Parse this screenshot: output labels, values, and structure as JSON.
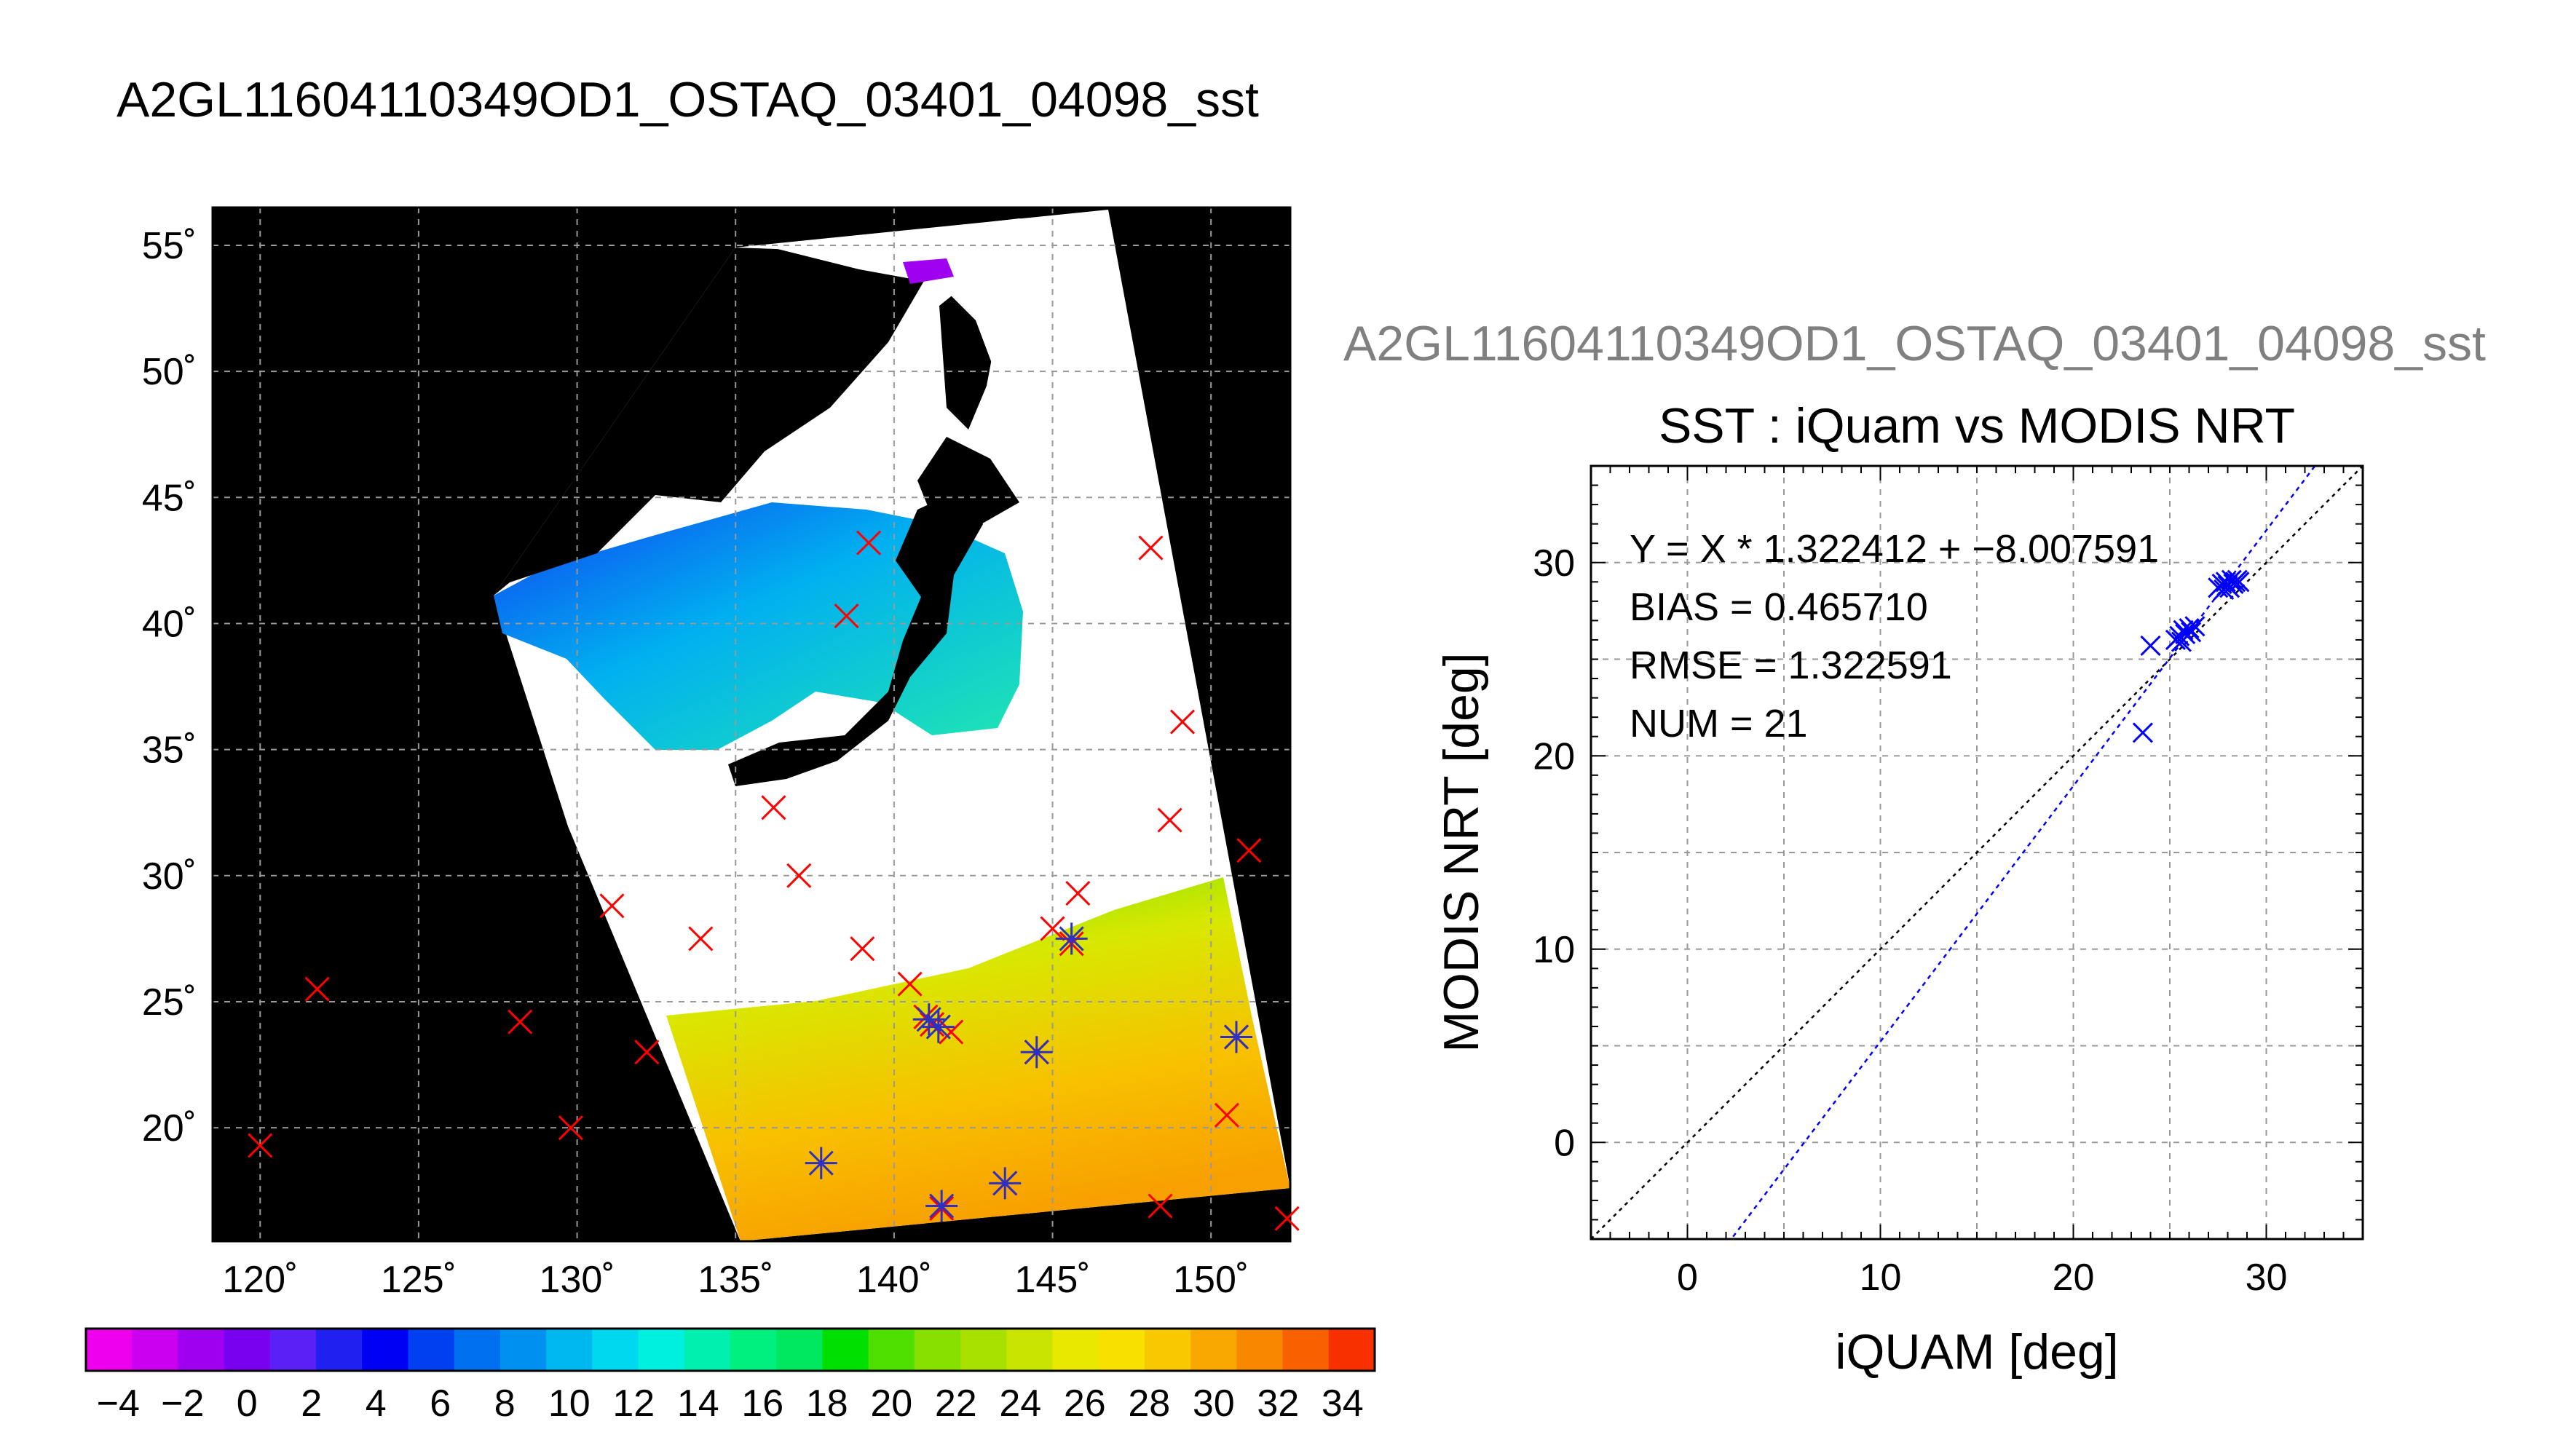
{
  "page_title": "A2GL11604110349OD1_OSTAQ_03401_04098_sst",
  "colors": {
    "land": "#000000",
    "cloud": "#ffffff",
    "match_marker": "#ff0000",
    "valid_marker": "#3030c0",
    "fit_line": "#0000ff",
    "identity_line": "#000000",
    "grid": "#999999"
  },
  "chart_data": [
    {
      "type": "heatmap",
      "name": "sst-map",
      "title": "",
      "xlabel": "",
      "ylabel": "",
      "xlim": [
        118.5,
        152.5
      ],
      "ylim": [
        15.5,
        56.5
      ],
      "grid": true,
      "x_ticks": [
        120,
        125,
        130,
        135,
        140,
        145,
        150
      ],
      "y_ticks": [
        20,
        25,
        30,
        35,
        40,
        45,
        50,
        55
      ],
      "x_tick_labels": [
        "120˚",
        "125˚",
        "130˚",
        "135˚",
        "140˚",
        "145˚",
        "150˚"
      ],
      "y_tick_labels": [
        "20˚",
        "25˚",
        "30˚",
        "35˚",
        "40˚",
        "45˚",
        "50˚",
        "55˚"
      ],
      "matchup_points": [
        {
          "lon": 120.0,
          "lat": 19.3
        },
        {
          "lon": 121.8,
          "lat": 25.5
        },
        {
          "lon": 128.2,
          "lat": 24.2
        },
        {
          "lon": 129.8,
          "lat": 20.0
        },
        {
          "lon": 131.1,
          "lat": 28.8
        },
        {
          "lon": 132.2,
          "lat": 23.0
        },
        {
          "lon": 133.9,
          "lat": 27.5
        },
        {
          "lon": 136.2,
          "lat": 32.7
        },
        {
          "lon": 137.0,
          "lat": 30.0
        },
        {
          "lon": 138.5,
          "lat": 40.3
        },
        {
          "lon": 139.2,
          "lat": 43.2
        },
        {
          "lon": 139.0,
          "lat": 27.1
        },
        {
          "lon": 140.5,
          "lat": 25.7
        },
        {
          "lon": 141.0,
          "lat": 24.4
        },
        {
          "lon": 141.2,
          "lat": 24.1
        },
        {
          "lon": 141.8,
          "lat": 23.8
        },
        {
          "lon": 141.5,
          "lat": 16.8
        },
        {
          "lon": 143.5,
          "lat": 17.8
        },
        {
          "lon": 144.5,
          "lat": 23.0
        },
        {
          "lon": 145.0,
          "lat": 27.9
        },
        {
          "lon": 145.6,
          "lat": 27.3
        },
        {
          "lon": 145.8,
          "lat": 29.3
        },
        {
          "lon": 148.1,
          "lat": 43.0
        },
        {
          "lon": 148.4,
          "lat": 16.9
        },
        {
          "lon": 148.7,
          "lat": 32.2
        },
        {
          "lon": 149.1,
          "lat": 36.1
        },
        {
          "lon": 150.5,
          "lat": 20.5
        },
        {
          "lon": 150.8,
          "lat": 23.6
        },
        {
          "lon": 151.2,
          "lat": 31.0
        },
        {
          "lon": 152.4,
          "lat": 16.4
        }
      ],
      "valid_points": [
        {
          "lon": 137.7,
          "lat": 18.6
        },
        {
          "lon": 141.1,
          "lat": 24.3
        },
        {
          "lon": 141.4,
          "lat": 24.0
        },
        {
          "lon": 141.5,
          "lat": 16.9
        },
        {
          "lon": 143.5,
          "lat": 17.8
        },
        {
          "lon": 144.5,
          "lat": 23.0
        },
        {
          "lon": 145.6,
          "lat": 27.5
        },
        {
          "lon": 150.8,
          "lat": 23.6
        }
      ]
    },
    {
      "type": "colorbar",
      "name": "sst-colorbar",
      "range": [
        -5,
        35
      ],
      "tick_labels": [
        "−4",
        "−2",
        "0",
        "2",
        "4",
        "6",
        "8",
        "10",
        "12",
        "14",
        "16",
        "18",
        "20",
        "22",
        "24",
        "26",
        "28",
        "30",
        "32",
        "34"
      ],
      "colors": [
        "#ee00ee",
        "#cc00f0",
        "#a000f0",
        "#7a00f0",
        "#5a20f5",
        "#2020f0",
        "#0000f5",
        "#0040f0",
        "#0070f0",
        "#0090f0",
        "#00b8f0",
        "#00d8f0",
        "#00f0e0",
        "#00f0b0",
        "#00f080",
        "#00e860",
        "#00e000",
        "#50e000",
        "#88e000",
        "#a8e000",
        "#c8e400",
        "#e8e800",
        "#f8e000",
        "#f8c800",
        "#f8a800",
        "#f88800",
        "#f86000",
        "#f83000"
      ]
    },
    {
      "type": "scatter",
      "name": "sst-scatter",
      "subtitle": "A2GL11604110349OD1_OSTAQ_03401_04098_sst",
      "title": "SST : iQuam vs MODIS NRT",
      "xlabel": "iQUAM [deg]",
      "ylabel": "MODIS NRT [deg]",
      "xlim": [
        -5,
        35
      ],
      "ylim": [
        -5,
        35
      ],
      "grid": true,
      "x_ticks": [
        0,
        10,
        20,
        30
      ],
      "y_ticks": [
        0,
        10,
        20,
        30
      ],
      "stats": [
        "Y = X * 1.322412 + −8.007591",
        "BIAS = 0.465710",
        "RMSE = 1.322591",
        "NUM = 21"
      ],
      "fit": {
        "slope": 1.322412,
        "intercept": -8.007591
      },
      "identity_line": true,
      "points": [
        {
          "x": 23.6,
          "y": 21.2
        },
        {
          "x": 24.0,
          "y": 25.7
        },
        {
          "x": 25.3,
          "y": 26.0
        },
        {
          "x": 25.5,
          "y": 26.2
        },
        {
          "x": 25.6,
          "y": 25.9
        },
        {
          "x": 25.7,
          "y": 26.5
        },
        {
          "x": 25.8,
          "y": 26.3
        },
        {
          "x": 26.0,
          "y": 26.6
        },
        {
          "x": 26.1,
          "y": 26.4
        },
        {
          "x": 26.3,
          "y": 26.7
        },
        {
          "x": 27.5,
          "y": 28.7
        },
        {
          "x": 27.7,
          "y": 28.9
        },
        {
          "x": 27.8,
          "y": 28.6
        },
        {
          "x": 27.9,
          "y": 29.0
        },
        {
          "x": 28.0,
          "y": 28.8
        },
        {
          "x": 28.1,
          "y": 28.7
        },
        {
          "x": 28.2,
          "y": 29.1
        },
        {
          "x": 28.3,
          "y": 28.9
        },
        {
          "x": 28.4,
          "y": 29.0
        },
        {
          "x": 28.5,
          "y": 29.1
        },
        {
          "x": 28.6,
          "y": 29.0
        }
      ]
    }
  ]
}
